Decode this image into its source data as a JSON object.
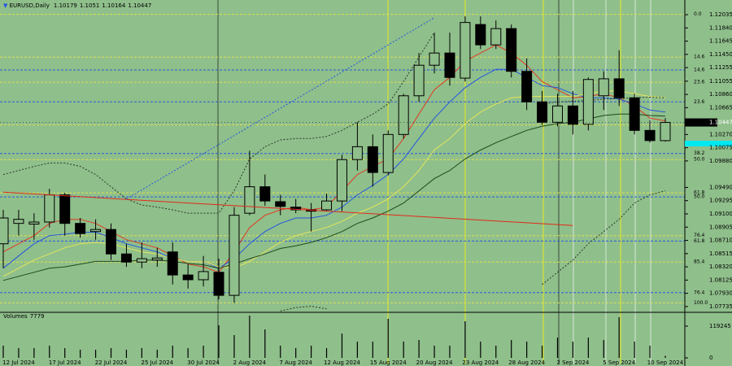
{
  "chart_data": {
    "type": "candlestick",
    "title": "EURUSD,Daily",
    "categories": [
      null,
      "12 Jul 2024",
      null,
      null,
      "17 Jul 2024",
      null,
      null,
      "22 Jul 2024",
      null,
      null,
      "25 Jul 2024",
      null,
      null,
      "30 Jul 2024",
      null,
      null,
      "2 Aug 2024",
      null,
      null,
      "7 Aug 2024",
      null,
      null,
      "12 Aug 2024",
      null,
      null,
      "15 Aug 2024",
      null,
      null,
      "20 Aug 2024",
      null,
      null,
      "23 Aug 2024",
      null,
      null,
      "28 Aug 2024",
      null,
      null,
      "2 Sep 2024",
      null,
      null,
      "5 Sep 2024",
      null,
      null,
      "10 Sep 2024"
    ],
    "open": [
      1.0866,
      1.0896,
      1.0895,
      1.0898,
      1.0938,
      1.0896,
      1.0884,
      1.0887,
      1.0851,
      1.0839,
      1.0842,
      1.0854,
      1.082,
      1.0813,
      1.0824,
      1.079,
      1.0911,
      1.095,
      1.0928,
      1.092,
      1.0916,
      1.0916,
      1.0929,
      1.099,
      1.1009,
      1.0971,
      1.1027,
      1.1084,
      1.1129,
      1.1147,
      1.111,
      1.1189,
      1.1159,
      1.1183,
      1.112,
      1.1075,
      1.1045,
      1.1069,
      1.1042,
      1.1084,
      1.1109,
      1.1081,
      1.1033,
      1.10179
    ],
    "high": [
      1.0916,
      1.0916,
      1.0911,
      1.0947,
      1.0941,
      1.0904,
      1.0902,
      1.0896,
      1.0866,
      1.0868,
      1.086,
      1.0868,
      1.0836,
      1.0848,
      1.0844,
      1.092,
      1.1003,
      1.0968,
      1.0938,
      1.0932,
      1.0926,
      1.094,
      1.0997,
      1.1045,
      1.1027,
      1.1033,
      1.1087,
      1.1147,
      1.1177,
      1.1177,
      1.1201,
      1.1201,
      1.1195,
      1.1189,
      1.1139,
      1.1091,
      1.1087,
      1.1091,
      1.1111,
      1.112,
      1.1151,
      1.1087,
      1.1048,
      1.1051
    ],
    "low": [
      1.083,
      1.0878,
      1.0872,
      1.089,
      1.0878,
      1.0875,
      1.0872,
      1.0842,
      1.0832,
      1.083,
      1.0832,
      1.0806,
      1.08,
      1.0803,
      1.0784,
      1.0779,
      1.0908,
      1.0922,
      1.0908,
      1.0911,
      1.0884,
      1.0914,
      1.0914,
      1.0974,
      1.095,
      1.0967,
      1.1021,
      1.1075,
      1.1117,
      1.1099,
      1.1105,
      1.1153,
      1.1153,
      1.1111,
      1.1063,
      1.1041,
      1.1039,
      1.1027,
      1.1033,
      1.1063,
      1.1069,
      1.1027,
      1.1015,
      1.10164
    ],
    "close": [
      1.0904,
      1.0902,
      1.0898,
      1.0938,
      1.0896,
      1.0881,
      1.0887,
      1.0851,
      1.0839,
      1.0844,
      1.0845,
      1.082,
      1.0813,
      1.0825,
      1.079,
      1.0908,
      1.095,
      1.0929,
      1.0921,
      1.0916,
      1.0914,
      1.0929,
      1.099,
      1.1009,
      1.0971,
      1.1027,
      1.1084,
      1.1129,
      1.1147,
      1.1111,
      1.1192,
      1.1159,
      1.1183,
      1.112,
      1.1075,
      1.1045,
      1.1069,
      1.1042,
      1.1108,
      1.1109,
      1.1081,
      1.1033,
      1.1018,
      1.10447
    ],
    "up_color": "#8fbf8b",
    "down_color": "#000000",
    "ylim": [
      1.07662,
      1.12251
    ],
    "yticks": [
      1.12035,
      {
        "value": 1.1184,
        "label": "1.11840"
      },
      1.11645,
      {
        "value": 1.1145,
        "label": "1.11450"
      },
      1.11255,
      1.11055,
      {
        "value": 1.1086,
        "label": "1.10860"
      },
      1.10665,
      {
        "value": 1.1027,
        "label": "1.10270"
      },
      1.10075,
      {
        "value": 1.0988,
        "label": "1.09880"
      },
      {
        "value": 1.0949,
        "label": "1.09490"
      },
      1.09295,
      {
        "value": 1.091,
        "label": "1.09100"
      },
      1.08905,
      {
        "value": 1.0871,
        "label": "1.08710"
      },
      1.08515,
      {
        "value": 1.0832,
        "label": "1.08320"
      },
      1.08125,
      {
        "value": 1.0793,
        "label": "1.07930"
      },
      1.07735
    ],
    "indicators": [
      {
        "color": "#e03a22",
        "dash": false,
        "values": [
          1.0854,
          1.0866,
          1.0878,
          1.0896,
          1.0902,
          1.0902,
          1.0896,
          1.0884,
          1.0872,
          1.0866,
          1.086,
          1.0848,
          1.0836,
          1.0832,
          1.0824,
          1.0854,
          1.089,
          1.0908,
          1.0916,
          1.092,
          1.0916,
          1.092,
          1.0944,
          1.0968,
          1.098,
          1.0991,
          1.1021,
          1.1057,
          1.1093,
          1.1111,
          1.1135,
          1.1147,
          1.1159,
          1.1147,
          1.1129,
          1.1105,
          1.1093,
          1.1081,
          1.1083,
          1.1087,
          1.1081,
          1.1069,
          1.1051,
          1.1047
        ]
      },
      {
        "color": "#2456e0",
        "dash": false,
        "values": [
          1.083,
          1.0848,
          1.0866,
          1.0878,
          1.088,
          1.0883,
          1.0883,
          1.0875,
          1.0866,
          1.086,
          1.0854,
          1.0844,
          1.084,
          1.084,
          1.083,
          1.0844,
          1.0866,
          1.0884,
          1.0896,
          1.0904,
          1.0904,
          1.0908,
          1.092,
          1.0938,
          1.0952,
          1.0968,
          1.0991,
          1.1021,
          1.1051,
          1.1075,
          1.1096,
          1.1111,
          1.1123,
          1.1123,
          1.1111,
          1.1099,
          1.1096,
          1.1087,
          1.1081,
          1.1081,
          1.1079,
          1.1072,
          1.1063,
          1.106
        ]
      },
      {
        "color": "#e6e65a",
        "dash": false,
        "values": [
          1.0818,
          1.083,
          1.0842,
          1.0851,
          1.086,
          1.0866,
          1.0868,
          1.0866,
          1.086,
          1.0854,
          1.0851,
          1.0844,
          1.084,
          1.084,
          1.0832,
          1.083,
          1.084,
          1.0854,
          1.0868,
          1.0878,
          1.0884,
          1.089,
          1.0899,
          1.0911,
          1.092,
          1.0932,
          1.095,
          1.0974,
          1.1004,
          1.1021,
          1.1043,
          1.106,
          1.1072,
          1.1081,
          1.1083,
          1.1083,
          1.1083,
          1.1083,
          1.1087,
          1.1091,
          1.1091,
          1.1087,
          1.1083,
          1.1081
        ]
      },
      {
        "color": "#1e4a1e",
        "dash": false,
        "values": [
          1.0812,
          1.0818,
          1.0824,
          1.083,
          1.0832,
          1.0836,
          1.084,
          1.084,
          1.084,
          1.0842,
          1.0842,
          1.084,
          1.0837,
          1.0835,
          1.083,
          1.0836,
          1.0844,
          1.0851,
          1.0859,
          1.0863,
          1.0868,
          1.0875,
          1.0884,
          1.0896,
          1.0904,
          1.0914,
          1.0926,
          1.0944,
          1.0962,
          1.0974,
          1.0991,
          1.1004,
          1.1015,
          1.1024,
          1.1033,
          1.1039,
          1.1043,
          1.1045,
          1.105,
          1.1055,
          1.1057,
          1.1057,
          1.1055,
          1.1054
        ]
      },
      {
        "color": "#2a3a2a",
        "dash": true,
        "values": [
          1.0968,
          1.0974,
          1.098,
          1.0985,
          1.0985,
          1.098,
          1.0968,
          1.095,
          1.0932,
          1.0923,
          1.092,
          1.0916,
          1.0911,
          1.0911,
          1.0911,
          1.0944,
          1.0991,
          1.1009,
          1.1019,
          1.1021,
          1.1021,
          1.1024,
          1.1033,
          1.1045,
          1.1057,
          1.1072,
          1.1105,
          1.1141,
          1.1177,
          null,
          null,
          null,
          null,
          null,
          null,
          1.1072,
          1.1075,
          1.1076,
          1.1077,
          1.1079,
          1.108,
          1.1081,
          1.1082,
          1.1081
        ]
      },
      {
        "color": "#2a3a2a",
        "dash": true,
        "values": [
          null,
          null,
          null,
          null,
          null,
          null,
          null,
          null,
          null,
          null,
          null,
          null,
          null,
          null,
          null,
          null,
          null,
          null,
          1.0767,
          1.0772,
          1.0774,
          1.077,
          null,
          null,
          null,
          null,
          null,
          null,
          null,
          null,
          null,
          null,
          null,
          null,
          null,
          1.0806,
          1.0824,
          1.0842,
          1.0866,
          1.0884,
          1.0902,
          1.0926,
          1.0938,
          1.0944
        ]
      }
    ],
    "trendlines": [
      {
        "color": "#e02a1a",
        "dash": false,
        "x": [
          0,
          37
        ],
        "values": [
          1.0942,
          1.0893
        ]
      },
      {
        "color": "#2456e0",
        "dash": true,
        "x": [
          8,
          28
        ],
        "values": [
          1.0932,
          1.1199
        ]
      }
    ],
    "fibo": [
      {
        "color": "#e0e050",
        "levels": [
          {
            "label": "0.0",
            "value": 1.1204
          },
          {
            "label": "14.6",
            "value": 1.1141
          },
          {
            "label": "23.6",
            "value": 1.1104
          },
          {
            "label": "38.2",
            "value": 1.1041
          },
          {
            "label": "50.0",
            "value": 1.099
          },
          {
            "label": "61.8",
            "value": 1.0941
          },
          {
            "label": "76.4",
            "value": 1.0878
          },
          {
            "label": "85.4",
            "value": 1.0839
          },
          {
            "label": "100.0",
            "value": 1.0779
          }
        ]
      },
      {
        "color": "#2a5bd7",
        "levels": [
          {
            "label": "14.6",
            "value": 1.1122
          },
          {
            "label": "23.6",
            "value": 1.1075
          },
          {
            "label": "38.2",
            "value": 1.0999
          },
          {
            "label": "50.0",
            "value": 1.0935
          },
          {
            "label": "61.8",
            "value": 1.087
          },
          {
            "label": "76.4",
            "value": 1.0794
          }
        ]
      }
    ],
    "volume": {
      "title": "Volumes",
      "color": "#000000",
      "values": [
        45900,
        36700,
        36700,
        45900,
        36700,
        30600,
        30600,
        36700,
        30600,
        36700,
        30600,
        45900,
        36700,
        45900,
        122300,
        85600,
        159000,
        107000,
        45900,
        36700,
        45900,
        36700,
        91700,
        61200,
        61200,
        146800,
        61200,
        67300,
        45900,
        45900,
        137600,
        61200,
        45900,
        67300,
        61200,
        45900,
        76500,
        61200,
        76500,
        67300,
        152900,
        61200,
        45900,
        7779
      ],
      "ylim": [
        0,
        171200
      ],
      "yticks": [
        0,
        119245
      ]
    }
  }
}
